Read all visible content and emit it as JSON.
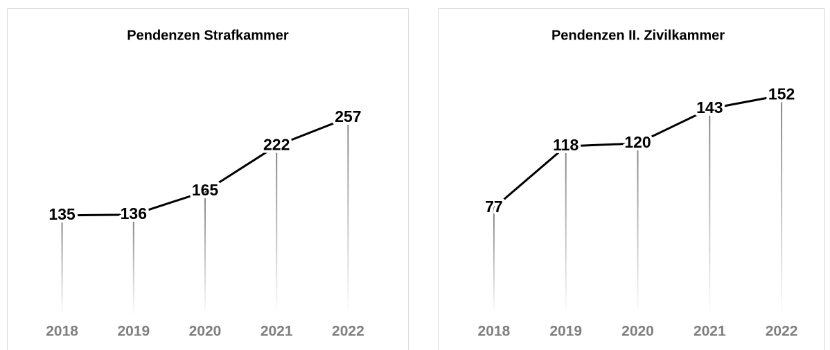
{
  "chart_data": [
    {
      "type": "line",
      "title": "Pendenzen Strafkammer",
      "categories": [
        "2018",
        "2019",
        "2020",
        "2021",
        "2022"
      ],
      "values": [
        135,
        136,
        165,
        222,
        257
      ],
      "color": "#000000",
      "ylim": [
        0,
        300
      ]
    },
    {
      "type": "line",
      "title": "Pendenzen II. Zivilkammer",
      "categories": [
        "2018",
        "2019",
        "2020",
        "2021",
        "2022"
      ],
      "values": [
        77,
        118,
        120,
        143,
        152
      ],
      "color": "#000000",
      "ylim": [
        0,
        160
      ]
    }
  ]
}
